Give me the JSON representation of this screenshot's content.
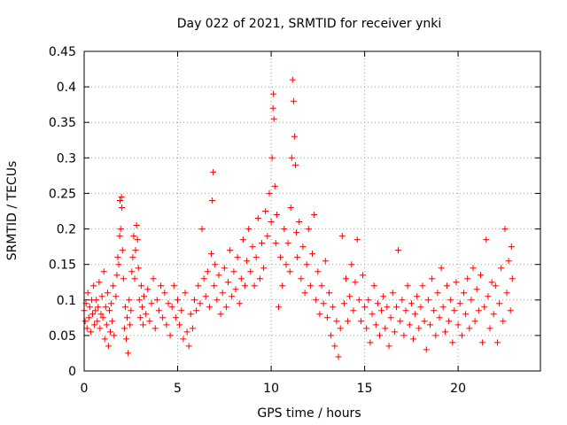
{
  "chart_data": {
    "type": "scatter",
    "title": "Day 022 of 2021, SRMTID for receiver ynki",
    "xlabel": "GPS time / hours",
    "ylabel": "SRMTID / TECUs",
    "xlim": [
      0,
      24.4
    ],
    "ylim": [
      0,
      0.45
    ],
    "x_ticks": [
      0,
      5,
      10,
      15,
      20
    ],
    "x_tick_labels": [
      "0",
      "5",
      "10",
      "15",
      "20"
    ],
    "y_ticks": [
      0,
      0.05,
      0.1,
      0.15,
      0.2,
      0.25,
      0.3,
      0.35,
      0.4,
      0.45
    ],
    "y_tick_labels": [
      "0",
      "0.05",
      "0.1",
      "0.15",
      "0.2",
      "0.25",
      "0.3",
      "0.35",
      "0.4",
      "0.45"
    ],
    "grid": true,
    "marker": "+",
    "color": "#ff0000",
    "series": [
      {
        "name": "SRMTID",
        "points": [
          [
            0.0,
            0.085
          ],
          [
            0.05,
            0.07
          ],
          [
            0.1,
            0.095
          ],
          [
            0.15,
            0.06
          ],
          [
            0.2,
            0.11
          ],
          [
            0.25,
            0.075
          ],
          [
            0.3,
            0.09
          ],
          [
            0.35,
            0.055
          ],
          [
            0.4,
            0.1
          ],
          [
            0.45,
            0.08
          ],
          [
            0.5,
            0.12
          ],
          [
            0.55,
            0.065
          ],
          [
            0.6,
            0.085
          ],
          [
            0.65,
            0.1
          ],
          [
            0.7,
            0.07
          ],
          [
            0.75,
            0.09
          ],
          [
            0.8,
            0.125
          ],
          [
            0.85,
            0.06
          ],
          [
            0.9,
            0.08
          ],
          [
            0.95,
            0.105
          ],
          [
            1.0,
            0.075
          ],
          [
            1.05,
            0.14
          ],
          [
            1.1,
            0.045
          ],
          [
            1.15,
            0.09
          ],
          [
            1.2,
            0.065
          ],
          [
            1.25,
            0.11
          ],
          [
            1.3,
            0.035
          ],
          [
            1.35,
            0.085
          ],
          [
            1.4,
            0.055
          ],
          [
            1.45,
            0.095
          ],
          [
            1.5,
            0.07
          ],
          [
            1.55,
            0.12
          ],
          [
            1.6,
            0.05
          ],
          [
            1.7,
            0.105
          ],
          [
            1.75,
            0.135
          ],
          [
            1.8,
            0.16
          ],
          [
            1.85,
            0.15
          ],
          [
            1.9,
            0.19
          ],
          [
            1.92,
            0.24
          ],
          [
            1.95,
            0.2
          ],
          [
            2.0,
            0.245
          ],
          [
            2.02,
            0.23
          ],
          [
            2.05,
            0.17
          ],
          [
            2.1,
            0.13
          ],
          [
            2.15,
            0.06
          ],
          [
            2.2,
            0.09
          ],
          [
            2.25,
            0.045
          ],
          [
            2.3,
            0.075
          ],
          [
            2.35,
            0.025
          ],
          [
            2.4,
            0.1
          ],
          [
            2.45,
            0.065
          ],
          [
            2.5,
            0.085
          ],
          [
            2.55,
            0.14
          ],
          [
            2.6,
            0.16
          ],
          [
            2.65,
            0.19
          ],
          [
            2.7,
            0.13
          ],
          [
            2.75,
            0.17
          ],
          [
            2.8,
            0.205
          ],
          [
            2.85,
            0.185
          ],
          [
            2.9,
            0.145
          ],
          [
            2.95,
            0.1
          ],
          [
            3.0,
            0.075
          ],
          [
            3.05,
            0.12
          ],
          [
            3.1,
            0.09
          ],
          [
            3.15,
            0.065
          ],
          [
            3.2,
            0.105
          ],
          [
            3.3,
            0.08
          ],
          [
            3.4,
            0.115
          ],
          [
            3.5,
            0.07
          ],
          [
            3.6,
            0.095
          ],
          [
            3.7,
            0.13
          ],
          [
            3.8,
            0.06
          ],
          [
            3.9,
            0.1
          ],
          [
            4.0,
            0.085
          ],
          [
            4.1,
            0.12
          ],
          [
            4.2,
            0.075
          ],
          [
            4.3,
            0.11
          ],
          [
            4.4,
            0.065
          ],
          [
            4.5,
            0.095
          ],
          [
            4.6,
            0.05
          ],
          [
            4.7,
            0.09
          ],
          [
            4.8,
            0.12
          ],
          [
            4.9,
            0.075
          ],
          [
            5.0,
            0.1
          ],
          [
            5.1,
            0.065
          ],
          [
            5.2,
            0.085
          ],
          [
            5.3,
            0.045
          ],
          [
            5.4,
            0.11
          ],
          [
            5.5,
            0.055
          ],
          [
            5.6,
            0.035
          ],
          [
            5.7,
            0.08
          ],
          [
            5.8,
            0.06
          ],
          [
            5.9,
            0.1
          ],
          [
            6.0,
            0.085
          ],
          [
            6.1,
            0.12
          ],
          [
            6.2,
            0.095
          ],
          [
            6.3,
            0.2
          ],
          [
            6.4,
            0.13
          ],
          [
            6.5,
            0.105
          ],
          [
            6.6,
            0.14
          ],
          [
            6.7,
            0.09
          ],
          [
            6.8,
            0.165
          ],
          [
            6.85,
            0.24
          ],
          [
            6.9,
            0.28
          ],
          [
            6.95,
            0.12
          ],
          [
            7.0,
            0.15
          ],
          [
            7.1,
            0.1
          ],
          [
            7.2,
            0.135
          ],
          [
            7.3,
            0.08
          ],
          [
            7.4,
            0.11
          ],
          [
            7.5,
            0.145
          ],
          [
            7.6,
            0.09
          ],
          [
            7.7,
            0.125
          ],
          [
            7.8,
            0.17
          ],
          [
            7.9,
            0.105
          ],
          [
            8.0,
            0.14
          ],
          [
            8.1,
            0.115
          ],
          [
            8.2,
            0.16
          ],
          [
            8.3,
            0.095
          ],
          [
            8.4,
            0.13
          ],
          [
            8.5,
            0.185
          ],
          [
            8.6,
            0.12
          ],
          [
            8.7,
            0.155
          ],
          [
            8.8,
            0.2
          ],
          [
            8.9,
            0.14
          ],
          [
            9.0,
            0.175
          ],
          [
            9.1,
            0.12
          ],
          [
            9.2,
            0.16
          ],
          [
            9.3,
            0.215
          ],
          [
            9.4,
            0.13
          ],
          [
            9.5,
            0.18
          ],
          [
            9.6,
            0.145
          ],
          [
            9.7,
            0.225
          ],
          [
            9.8,
            0.19
          ],
          [
            9.9,
            0.25
          ],
          [
            10.0,
            0.21
          ],
          [
            10.05,
            0.3
          ],
          [
            10.1,
            0.37
          ],
          [
            10.12,
            0.39
          ],
          [
            10.15,
            0.355
          ],
          [
            10.2,
            0.26
          ],
          [
            10.25,
            0.18
          ],
          [
            10.3,
            0.22
          ],
          [
            10.4,
            0.09
          ],
          [
            10.5,
            0.16
          ],
          [
            10.6,
            0.12
          ],
          [
            10.7,
            0.2
          ],
          [
            10.8,
            0.15
          ],
          [
            10.9,
            0.18
          ],
          [
            11.0,
            0.14
          ],
          [
            11.05,
            0.23
          ],
          [
            11.1,
            0.3
          ],
          [
            11.15,
            0.41
          ],
          [
            11.2,
            0.38
          ],
          [
            11.25,
            0.33
          ],
          [
            11.3,
            0.29
          ],
          [
            11.35,
            0.195
          ],
          [
            11.4,
            0.16
          ],
          [
            11.5,
            0.21
          ],
          [
            11.6,
            0.13
          ],
          [
            11.7,
            0.175
          ],
          [
            11.8,
            0.11
          ],
          [
            11.9,
            0.15
          ],
          [
            12.0,
            0.2
          ],
          [
            12.1,
            0.12
          ],
          [
            12.2,
            0.165
          ],
          [
            12.3,
            0.22
          ],
          [
            12.4,
            0.1
          ],
          [
            12.5,
            0.14
          ],
          [
            12.6,
            0.08
          ],
          [
            12.7,
            0.12
          ],
          [
            12.8,
            0.095
          ],
          [
            12.9,
            0.155
          ],
          [
            13.0,
            0.075
          ],
          [
            13.1,
            0.11
          ],
          [
            13.2,
            0.05
          ],
          [
            13.3,
            0.09
          ],
          [
            13.4,
            0.035
          ],
          [
            13.5,
            0.07
          ],
          [
            13.6,
            0.02
          ],
          [
            13.7,
            0.06
          ],
          [
            13.8,
            0.19
          ],
          [
            13.9,
            0.095
          ],
          [
            14.0,
            0.13
          ],
          [
            14.1,
            0.07
          ],
          [
            14.2,
            0.105
          ],
          [
            14.3,
            0.15
          ],
          [
            14.4,
            0.085
          ],
          [
            14.5,
            0.125
          ],
          [
            14.6,
            0.185
          ],
          [
            14.7,
            0.1
          ],
          [
            14.8,
            0.07
          ],
          [
            14.9,
            0.135
          ],
          [
            15.0,
            0.09
          ],
          [
            15.1,
            0.06
          ],
          [
            15.2,
            0.1
          ],
          [
            15.3,
            0.04
          ],
          [
            15.4,
            0.08
          ],
          [
            15.5,
            0.12
          ],
          [
            15.6,
            0.065
          ],
          [
            15.7,
            0.095
          ],
          [
            15.8,
            0.05
          ],
          [
            15.9,
            0.085
          ],
          [
            16.0,
            0.105
          ],
          [
            16.1,
            0.06
          ],
          [
            16.2,
            0.09
          ],
          [
            16.3,
            0.035
          ],
          [
            16.4,
            0.075
          ],
          [
            16.5,
            0.11
          ],
          [
            16.6,
            0.055
          ],
          [
            16.7,
            0.09
          ],
          [
            16.8,
            0.17
          ],
          [
            16.9,
            0.07
          ],
          [
            17.0,
            0.1
          ],
          [
            17.1,
            0.05
          ],
          [
            17.2,
            0.085
          ],
          [
            17.3,
            0.12
          ],
          [
            17.4,
            0.065
          ],
          [
            17.5,
            0.095
          ],
          [
            17.6,
            0.045
          ],
          [
            17.7,
            0.08
          ],
          [
            17.8,
            0.105
          ],
          [
            17.9,
            0.06
          ],
          [
            18.0,
            0.09
          ],
          [
            18.1,
            0.12
          ],
          [
            18.2,
            0.07
          ],
          [
            18.3,
            0.03
          ],
          [
            18.4,
            0.1
          ],
          [
            18.5,
            0.065
          ],
          [
            18.6,
            0.13
          ],
          [
            18.7,
            0.085
          ],
          [
            18.8,
            0.05
          ],
          [
            18.9,
            0.11
          ],
          [
            19.0,
            0.075
          ],
          [
            19.1,
            0.145
          ],
          [
            19.2,
            0.09
          ],
          [
            19.3,
            0.055
          ],
          [
            19.4,
            0.12
          ],
          [
            19.5,
            0.07
          ],
          [
            19.6,
            0.1
          ],
          [
            19.7,
            0.04
          ],
          [
            19.8,
            0.085
          ],
          [
            19.9,
            0.125
          ],
          [
            20.0,
            0.065
          ],
          [
            20.1,
            0.095
          ],
          [
            20.2,
            0.05
          ],
          [
            20.3,
            0.11
          ],
          [
            20.4,
            0.08
          ],
          [
            20.5,
            0.13
          ],
          [
            20.6,
            0.06
          ],
          [
            20.7,
            0.1
          ],
          [
            20.8,
            0.145
          ],
          [
            20.9,
            0.07
          ],
          [
            21.0,
            0.115
          ],
          [
            21.1,
            0.085
          ],
          [
            21.2,
            0.135
          ],
          [
            21.3,
            0.04
          ],
          [
            21.4,
            0.09
          ],
          [
            21.5,
            0.185
          ],
          [
            21.6,
            0.105
          ],
          [
            21.7,
            0.06
          ],
          [
            21.8,
            0.125
          ],
          [
            21.9,
            0.08
          ],
          [
            22.0,
            0.12
          ],
          [
            22.1,
            0.04
          ],
          [
            22.2,
            0.095
          ],
          [
            22.3,
            0.145
          ],
          [
            22.4,
            0.07
          ],
          [
            22.5,
            0.2
          ],
          [
            22.6,
            0.11
          ],
          [
            22.7,
            0.155
          ],
          [
            22.8,
            0.085
          ],
          [
            22.85,
            0.175
          ],
          [
            22.9,
            0.13
          ]
        ]
      }
    ]
  }
}
